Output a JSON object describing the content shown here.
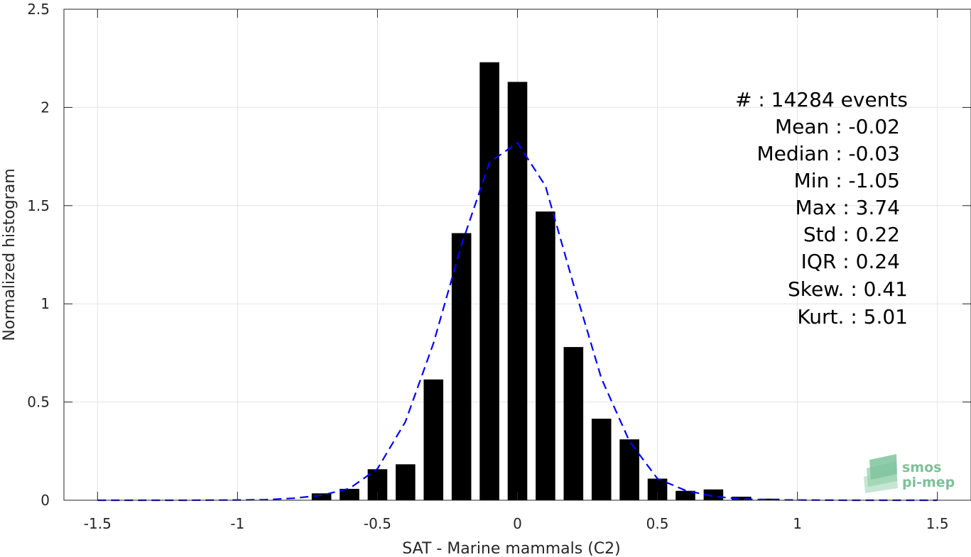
{
  "chart_data": {
    "type": "bar",
    "xlabel": "SAT - Marine mammals (C2)",
    "ylabel": "Normalized histogram",
    "xlim": [
      -1.62,
      1.62
    ],
    "ylim": [
      0,
      2.5
    ],
    "xticks": [
      -1.5,
      -1,
      -0.5,
      0,
      0.5,
      1,
      1.5
    ],
    "xtick_labels": [
      "-1.5",
      "-1",
      "-0.5",
      "0",
      "0.5",
      "1",
      "1.5"
    ],
    "yticks": [
      0,
      0.5,
      1,
      1.5,
      2,
      2.5
    ],
    "ytick_labels": [
      "0",
      "0.5",
      "1",
      "1.5",
      "2",
      "2.5"
    ],
    "grid": true,
    "bar_color": "#000000",
    "bar_width": 0.07,
    "bars": {
      "x": [
        -1.5,
        -1.4,
        -1.3,
        -1.2,
        -1.1,
        -1.0,
        -0.9,
        -0.8,
        -0.7,
        -0.6,
        -0.5,
        -0.4,
        -0.3,
        -0.2,
        -0.1,
        0.0,
        0.1,
        0.2,
        0.3,
        0.4,
        0.5,
        0.6,
        0.7,
        0.8,
        0.9,
        1.0,
        1.1,
        1.2,
        1.3,
        1.4,
        1.5
      ],
      "values": [
        0,
        0,
        0,
        0,
        0,
        0,
        0,
        0.002,
        0.035,
        0.058,
        0.158,
        0.183,
        0.615,
        1.36,
        2.23,
        2.13,
        1.47,
        0.78,
        0.415,
        0.31,
        0.11,
        0.048,
        0.055,
        0.018,
        0.008,
        0.002,
        0,
        0,
        0,
        0,
        0
      ]
    },
    "series": [
      {
        "style": "dashed",
        "color": "#0000ff",
        "x": [
          -1.5,
          -1.2,
          -1.0,
          -0.9,
          -0.8,
          -0.7,
          -0.6,
          -0.5,
          -0.4,
          -0.3,
          -0.2,
          -0.1,
          0.0,
          0.1,
          0.2,
          0.3,
          0.4,
          0.5,
          0.6,
          0.7,
          0.8,
          0.9,
          1.0,
          1.2,
          1.5
        ],
        "values": [
          0,
          0,
          0.001,
          0.003,
          0.01,
          0.025,
          0.06,
          0.16,
          0.4,
          0.8,
          1.3,
          1.72,
          1.82,
          1.6,
          1.1,
          0.62,
          0.3,
          0.11,
          0.05,
          0.02,
          0.006,
          0.002,
          0.001,
          0,
          0
        ]
      }
    ],
    "stats": {
      "events": "#  : 14284 events",
      "mean": "Mean : -0.02",
      "median": "Median : -0.03",
      "min": "Min : -1.05",
      "max": "Max : 3.74",
      "std": "Std : 0.22",
      "iqr": "IQR : 0.24",
      "skew": "Skew. : 0.41",
      "kurt": "Kurt. : 5.01"
    },
    "logo": {
      "line1": "smos",
      "line2": "pi-mep",
      "color": "#7fbf99"
    }
  }
}
